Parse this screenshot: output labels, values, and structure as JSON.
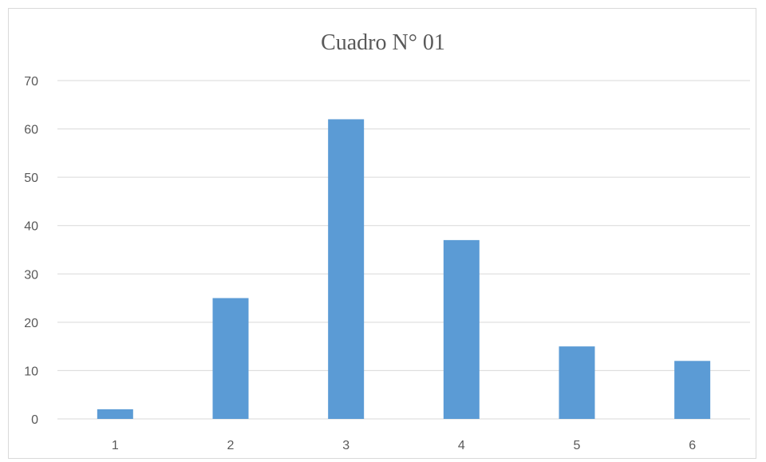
{
  "chart_data": {
    "type": "bar",
    "title": "Cuadro N° 01",
    "categories": [
      "1",
      "2",
      "3",
      "4",
      "5",
      "6"
    ],
    "values": [
      2,
      25,
      62,
      37,
      15,
      12
    ],
    "xlabel": "",
    "ylabel": "",
    "ylim": [
      0,
      70
    ],
    "yticks": [
      0,
      10,
      20,
      30,
      40,
      50,
      60,
      70
    ],
    "grid": true,
    "legend": "none",
    "bar_color": "#5b9bd5",
    "grid_color": "#d9d9d9"
  }
}
